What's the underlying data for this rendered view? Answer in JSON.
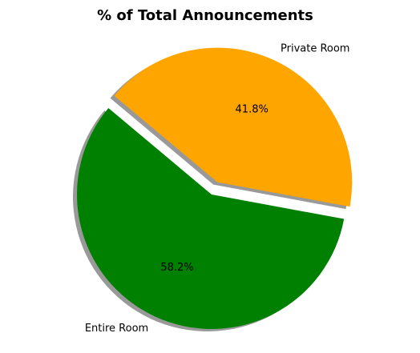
{
  "chart_data": {
    "type": "pie",
    "title": "% of Total Announcements",
    "categories": [
      "Entire Room",
      "Private Room"
    ],
    "values": [
      58.2,
      41.8
    ],
    "value_labels": [
      "58.2%",
      "41.8%"
    ],
    "colors": [
      "#008000",
      "#FFA500"
    ],
    "exploded": [
      false,
      true
    ],
    "shadow": true,
    "start_angle_deg": 140,
    "direction": "counterclockwise",
    "legend": "none"
  }
}
